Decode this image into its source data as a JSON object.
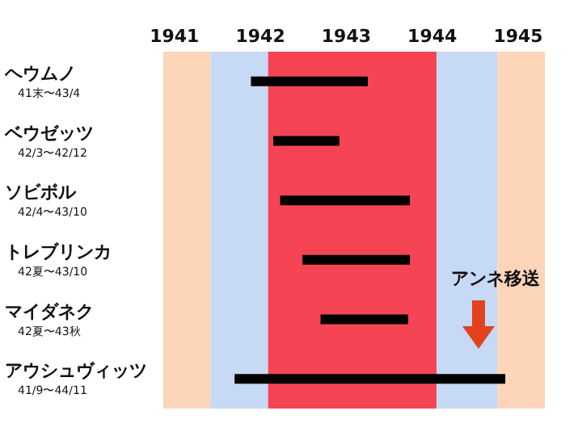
{
  "chart_data": {
    "type": "bar",
    "orientation": "horizontal",
    "categories": [
      "ヘウムノ\n41末〜43/4",
      "ベウゼッツ\n42/3〜42/12",
      "ソビボル\n42/4〜43/10",
      "トレブリンカ\n42夏〜43/10",
      "マイダネク\n42夏〜43秋",
      "アウシュヴィッツ\n41/9〜44/11"
    ],
    "base": [
      1941.89,
      1942.15,
      1942.23,
      1942.49,
      1942.7,
      1941.7
    ],
    "values": [
      1.36,
      0.77,
      1.51,
      1.25,
      1.02,
      3.15
    ],
    "color": "#000000",
    "xlim": [
      1940.87,
      1945.31
    ],
    "xticks": [
      1941,
      1942,
      1943,
      1944,
      1945
    ],
    "bands": [
      {
        "axis": "x",
        "from": 1940.87,
        "to": 1941.42,
        "color": "#fdd5b8"
      },
      {
        "axis": "x",
        "from": 1941.42,
        "to": 1942.09,
        "color": "#c6d9f5"
      },
      {
        "axis": "x",
        "from": 1942.09,
        "to": 1944.05,
        "color": "#f54555"
      },
      {
        "axis": "x",
        "from": 1944.05,
        "to": 1944.76,
        "color": "#c6d9f5"
      },
      {
        "axis": "x",
        "from": 1944.76,
        "to": 1945.31,
        "color": "#fdd5b8"
      }
    ],
    "annotations": [
      "アンネ移送"
    ]
  }
}
